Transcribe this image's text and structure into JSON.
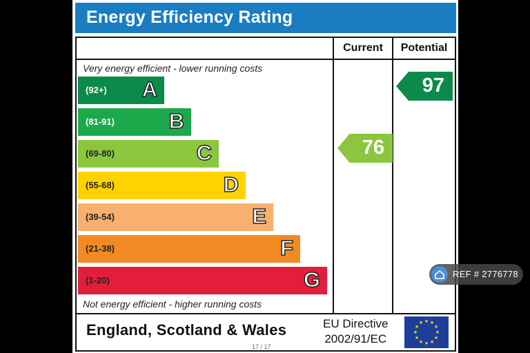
{
  "header": {
    "title": "Energy Efficiency Rating"
  },
  "columns": {
    "current": "Current",
    "potential": "Potential"
  },
  "notes": {
    "top": "Very energy efficient - lower running costs",
    "bottom": "Not energy efficient - higher running costs"
  },
  "bands": [
    {
      "range": "(92+)",
      "letter": "A",
      "color": "#0c8a4a"
    },
    {
      "range": "(81-91)",
      "letter": "B",
      "color": "#1ba94c"
    },
    {
      "range": "(69-80)",
      "letter": "C",
      "color": "#8cc63f"
    },
    {
      "range": "(55-68)",
      "letter": "D",
      "color": "#ffd200"
    },
    {
      "range": "(39-54)",
      "letter": "E",
      "color": "#f7b06d"
    },
    {
      "range": "(21-38)",
      "letter": "F",
      "color": "#f18a22"
    },
    {
      "range": "(1-20)",
      "letter": "G",
      "color": "#e31d3c"
    }
  ],
  "ratings": {
    "current": {
      "value": "76",
      "color": "#8cc63f"
    },
    "potential": {
      "value": "97",
      "color": "#0c8a4a"
    }
  },
  "footer": {
    "region": "England, Scotland & Wales",
    "directive_line1": "EU Directive",
    "directive_line2": "2002/91/EC"
  },
  "pager": "17 / 17",
  "ref_badge": {
    "text": "REF # 2776778"
  }
}
